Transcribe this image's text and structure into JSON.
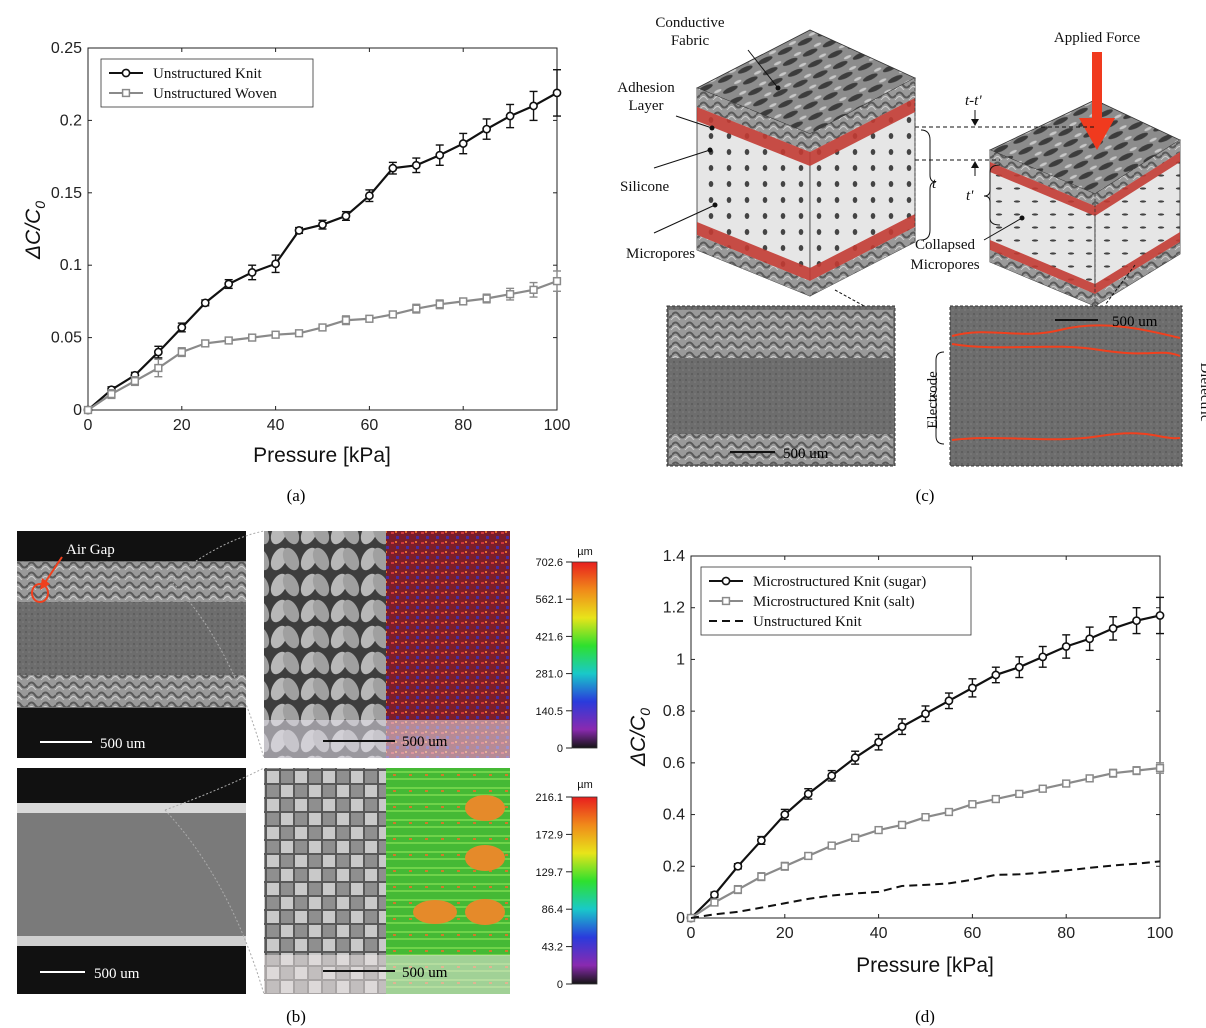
{
  "panels": {
    "a": {
      "label": "(a)"
    },
    "b": {
      "label": "(b)"
    },
    "c": {
      "label": "(c)"
    },
    "d": {
      "label": "(d)"
    }
  },
  "chart_data": [
    {
      "id": "a",
      "type": "line",
      "title": "",
      "xlabel": "Pressure [kPa]",
      "ylabel": "ΔC/C0",
      "xlim": [
        0,
        100
      ],
      "ylim": [
        0,
        0.25
      ],
      "xticks": [
        "0",
        "20",
        "40",
        "60",
        "80",
        "100"
      ],
      "yticks": [
        "0",
        "0.05",
        "0.1",
        "0.15",
        "0.2",
        "0.25"
      ],
      "legend_position": "top-left",
      "x": [
        0,
        5,
        10,
        15,
        20,
        25,
        30,
        35,
        40,
        45,
        50,
        55,
        60,
        65,
        70,
        75,
        80,
        85,
        90,
        95,
        100
      ],
      "series": [
        {
          "name": "Unstructured Knit",
          "marker": "circle",
          "color": "#111111",
          "values": [
            0,
            0.014,
            0.024,
            0.04,
            0.057,
            0.074,
            0.087,
            0.095,
            0.101,
            0.124,
            0.128,
            0.134,
            0.148,
            0.167,
            0.169,
            0.176,
            0.184,
            0.194,
            0.203,
            0.21,
            0.219
          ],
          "err": [
            0,
            0.002,
            0.002,
            0.004,
            0.003,
            0.002,
            0.003,
            0.005,
            0.006,
            0.002,
            0.003,
            0.003,
            0.004,
            0.004,
            0.005,
            0.007,
            0.007,
            0.007,
            0.008,
            0.01,
            0.016
          ]
        },
        {
          "name": "Unstructured Woven",
          "marker": "square",
          "color": "#8a8a8a",
          "values": [
            0,
            0.011,
            0.02,
            0.029,
            0.04,
            0.046,
            0.048,
            0.05,
            0.052,
            0.053,
            0.057,
            0.062,
            0.063,
            0.066,
            0.07,
            0.073,
            0.075,
            0.077,
            0.08,
            0.083,
            0.089
          ],
          "err": [
            0,
            0.003,
            0.003,
            0.006,
            0.003,
            0.002,
            0.002,
            0.002,
            0.002,
            0.002,
            0.002,
            0.003,
            0.002,
            0.002,
            0.003,
            0.003,
            0.002,
            0.003,
            0.004,
            0.005,
            0.007
          ]
        }
      ]
    },
    {
      "id": "d",
      "type": "line",
      "title": "",
      "xlabel": "Pressure [kPa]",
      "ylabel": "ΔC/C0",
      "xlim": [
        0,
        100
      ],
      "ylim": [
        0,
        1.4
      ],
      "xticks": [
        "0",
        "20",
        "40",
        "60",
        "80",
        "100"
      ],
      "yticks": [
        "0",
        "0.2",
        "0.4",
        "0.6",
        "0.8",
        "1",
        "1.2",
        "1.4"
      ],
      "legend_position": "top-left",
      "x": [
        0,
        5,
        10,
        15,
        20,
        25,
        30,
        35,
        40,
        45,
        50,
        55,
        60,
        65,
        70,
        75,
        80,
        85,
        90,
        95,
        100
      ],
      "series": [
        {
          "name": "Microstructured Knit (sugar)",
          "marker": "circle",
          "color": "#111111",
          "values": [
            0,
            0.09,
            0.2,
            0.3,
            0.4,
            0.48,
            0.55,
            0.62,
            0.68,
            0.74,
            0.79,
            0.84,
            0.89,
            0.94,
            0.97,
            1.01,
            1.05,
            1.08,
            1.12,
            1.15,
            1.17
          ],
          "err": [
            0,
            0.01,
            0.01,
            0.015,
            0.02,
            0.02,
            0.02,
            0.025,
            0.03,
            0.03,
            0.03,
            0.03,
            0.035,
            0.03,
            0.04,
            0.04,
            0.045,
            0.045,
            0.045,
            0.05,
            0.07
          ]
        },
        {
          "name": "Microstructured Knit (salt)",
          "marker": "square",
          "color": "#8a8a8a",
          "values": [
            0,
            0.06,
            0.11,
            0.16,
            0.2,
            0.24,
            0.28,
            0.31,
            0.34,
            0.36,
            0.39,
            0.41,
            0.44,
            0.46,
            0.48,
            0.5,
            0.52,
            0.54,
            0.56,
            0.57,
            0.58
          ],
          "err": [
            0,
            0.01,
            0.015,
            0.015,
            0.015,
            0.012,
            0.012,
            0.012,
            0.012,
            0.012,
            0.012,
            0.012,
            0.012,
            0.012,
            0.012,
            0.012,
            0.012,
            0.012,
            0.015,
            0.015,
            0.02
          ]
        },
        {
          "name": "Unstructured Knit",
          "marker": "none",
          "dash": true,
          "color": "#111111",
          "values": [
            0,
            0.014,
            0.024,
            0.04,
            0.057,
            0.074,
            0.087,
            0.095,
            0.101,
            0.124,
            0.128,
            0.134,
            0.148,
            0.167,
            0.169,
            0.176,
            0.184,
            0.194,
            0.203,
            0.21,
            0.219
          ],
          "err": []
        }
      ]
    }
  ],
  "schematic": {
    "conductive_fabric": "Conductive\nFabric",
    "adhesion_layer": "Adhesion\nLayer",
    "silicone": "Silicone",
    "micropores": "Micropores",
    "collapsed_micropores": "Collapsed\nMicropores",
    "applied_force": "Applied Force",
    "t": "t",
    "t_prime": "t'",
    "t_minus": "t-t'",
    "electrode": "Electrode",
    "dielectric": "Dielectric",
    "scale_left": "500 um",
    "scale_right": "500 um",
    "colors": {
      "fabric": "#6f6f6f",
      "adhesion": "#c23b33",
      "silicone": "#e4e4e4",
      "force": "#f03a1e"
    }
  },
  "micrographs": {
    "air_gap": "Air Gap",
    "knit_scale": "500 um",
    "knit_surface_scale": "500 um",
    "woven_scale": "500 um",
    "woven_surface_scale": "500 um",
    "knit_colorbar": {
      "unit": "µm",
      "ticks": [
        "702.6",
        "562.1",
        "421.6",
        "281.0",
        "140.5",
        "0"
      ]
    },
    "woven_colorbar": {
      "unit": "µm",
      "ticks": [
        "216.1",
        "172.9",
        "129.7",
        "86.4",
        "43.2",
        "0"
      ]
    }
  }
}
